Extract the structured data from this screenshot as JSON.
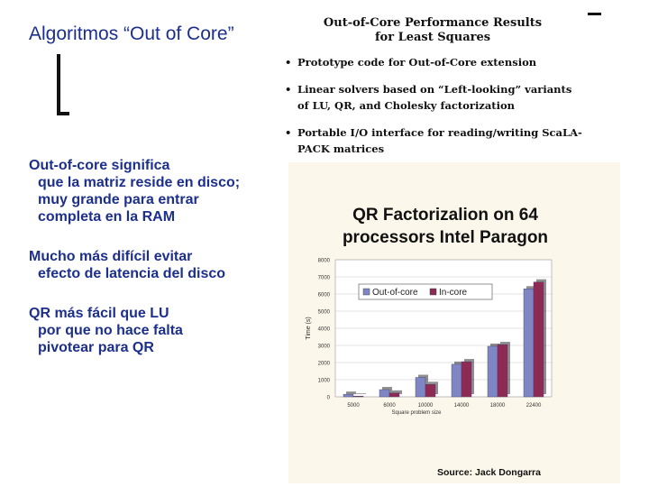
{
  "slide": {
    "title": "Algoritmos “Out of Core”",
    "paragraphs": [
      {
        "lines": [
          "Out-of-core significa",
          "que la matriz reside en disco;",
          "muy grande para entrar",
          "completa en la RAM"
        ]
      },
      {
        "lines": [
          "Mucho más difícil evitar",
          "efecto de latencia del disco"
        ]
      },
      {
        "lines": [
          "QR más fácil que LU",
          "por que no hace falta",
          "pivotear para QR"
        ]
      }
    ],
    "source": "Source: Jack Dongarra"
  },
  "paper": {
    "title_line1": "Out-of-Core Performance Results",
    "title_line2": "for Least Squares",
    "bullet_symbol": "•",
    "bullets": [
      {
        "line1": "Prototype code for Out-of-Core extension",
        "line2": ""
      },
      {
        "line1": "Linear solvers based on “Left-looking” variants",
        "line2": "of LU, QR, and Cholesky factorization"
      },
      {
        "line1": "Portable I/O interface for reading/writing ScaLA-",
        "line2": "PACK matrices"
      }
    ]
  },
  "chart_data": {
    "type": "bar",
    "title_line1": "QR Factorizalion on 64",
    "title_line2": "processors Intel Paragon",
    "xlabel": "Square problem size",
    "ylabel": "Time (s)",
    "categories": [
      "5000",
      "6000",
      "10000",
      "14000",
      "18000",
      "22400"
    ],
    "yticks": [
      "0",
      "1000",
      "2000",
      "3000",
      "4000",
      "5000",
      "6000",
      "7000",
      "8000"
    ],
    "ylim": [
      0,
      8000
    ],
    "legend_position": "top",
    "series": [
      {
        "name": "Out-of-core",
        "color": "#7f86c6",
        "values": [
          150,
          420,
          1130,
          1900,
          2950,
          6300
        ]
      },
      {
        "name": "In-core",
        "color": "#8e2b55",
        "values": [
          40,
          220,
          720,
          2050,
          3050,
          6700
        ]
      }
    ]
  }
}
